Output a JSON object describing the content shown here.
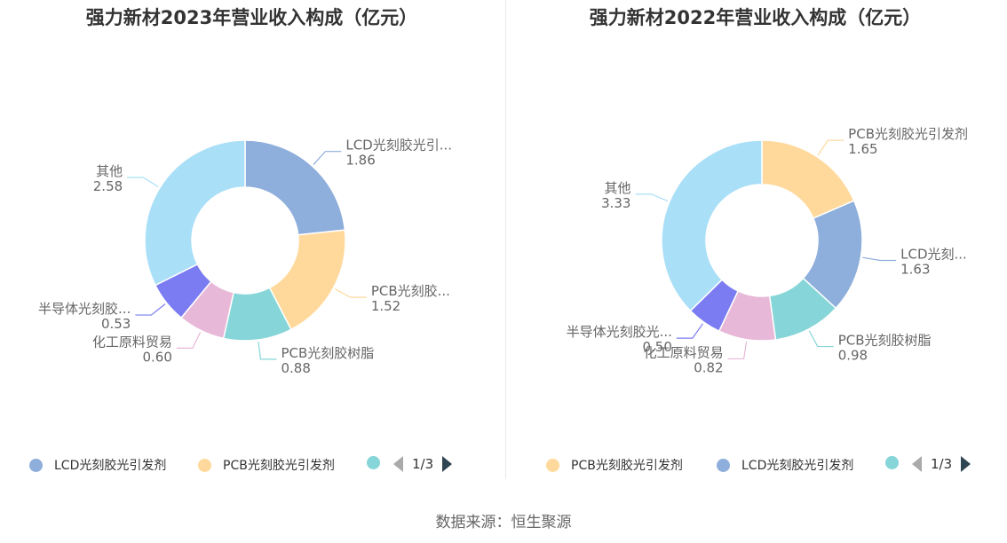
{
  "charts": [
    {
      "title": "强力新材2023年营业收入构成（亿元）",
      "legend": [
        {
          "label": "LCD光刻胶光引发剂",
          "color": "#8eaedb"
        },
        {
          "label": "PCB光刻胶光引发剂",
          "color": "#ffd99b"
        },
        {
          "label": "",
          "color": "#86d5d8"
        }
      ],
      "pager": "1/3"
    },
    {
      "title": "强力新材2022年营业收入构成（亿元）",
      "legend": [
        {
          "label": "PCB光刻胶光引发剂",
          "color": "#ffd99b"
        },
        {
          "label": "LCD光刻胶光引发剂",
          "color": "#8eaedb"
        },
        {
          "label": "",
          "color": "#86d5d8"
        }
      ],
      "pager": "1/3"
    }
  ],
  "chart_data": [
    {
      "type": "pie",
      "title": "强力新材2023年营业收入构成（亿元）",
      "series": [
        {
          "label": "LCD光刻胶光引...",
          "value": 1.86,
          "display": "1.86",
          "color": "#8eaedb"
        },
        {
          "label": "PCB光刻胶...",
          "value": 1.52,
          "display": "1.52",
          "color": "#ffd99b"
        },
        {
          "label": "PCB光刻胶树脂",
          "value": 0.88,
          "display": "0.88",
          "color": "#86d5d8"
        },
        {
          "label": "化工原料贸易",
          "value": 0.6,
          "display": "0.60",
          "color": "#e8b8d8"
        },
        {
          "label": "半导体光刻胶...",
          "value": 0.53,
          "display": "0.53",
          "color": "#7b7bf2"
        },
        {
          "label": "其他",
          "value": 2.58,
          "display": "2.58",
          "color": "#aadff8"
        }
      ]
    },
    {
      "type": "pie",
      "title": "强力新材2022年营业收入构成（亿元）",
      "series": [
        {
          "label": "PCB光刻胶光引发剂",
          "value": 1.65,
          "display": "1.65",
          "color": "#ffd99b"
        },
        {
          "label": "LCD光刻...",
          "value": 1.63,
          "display": "1.63",
          "color": "#8eaedb"
        },
        {
          "label": "PCB光刻胶树脂",
          "value": 0.98,
          "display": "0.98",
          "color": "#86d5d8"
        },
        {
          "label": "化工原料贸易",
          "value": 0.82,
          "display": "0.82",
          "color": "#e8b8d8"
        },
        {
          "label": "半导体光刻胶光...",
          "value": 0.5,
          "display": "0.50",
          "color": "#7b7bf2"
        },
        {
          "label": "其他",
          "value": 3.33,
          "display": "3.33",
          "color": "#aadff8"
        }
      ]
    }
  ],
  "footer": {
    "source": "数据来源：恒生聚源"
  }
}
